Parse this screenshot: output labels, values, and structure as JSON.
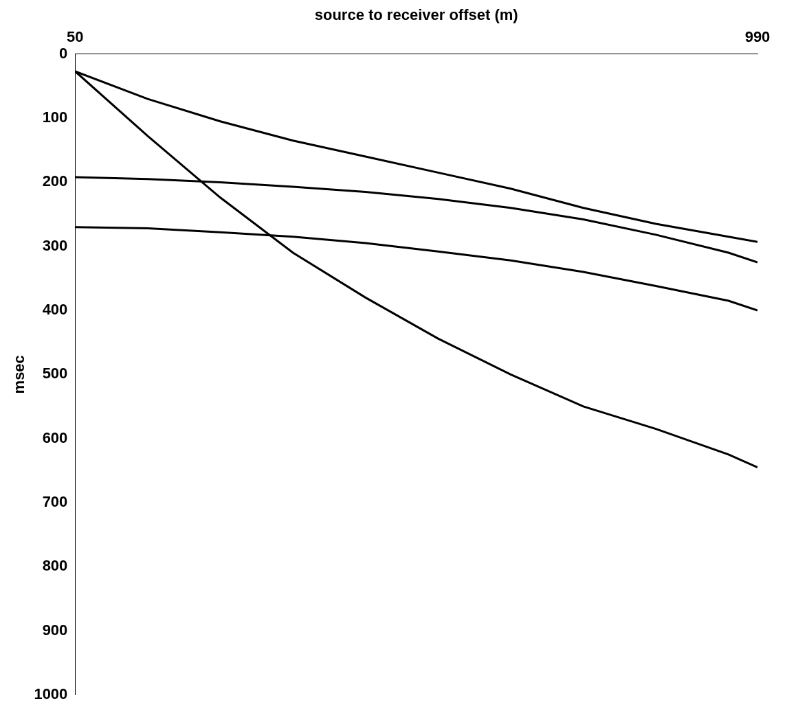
{
  "chart_data": {
    "type": "line",
    "x_label": "source to receiver offset (m)",
    "y_label": "msec",
    "x": [
      50,
      150,
      250,
      350,
      450,
      550,
      650,
      750,
      850,
      950,
      990
    ],
    "series": [
      {
        "color": "#000000",
        "values": [
          27,
          70,
          105,
          135,
          160,
          185,
          210,
          240,
          265,
          285,
          293
        ]
      },
      {
        "color": "#000000",
        "values": [
          27,
          128,
          224,
          310,
          380,
          444,
          500,
          550,
          585,
          625,
          645
        ]
      },
      {
        "color": "#000000",
        "values": [
          192,
          195,
          200,
          207,
          215,
          226,
          240,
          258,
          282,
          310,
          325
        ]
      },
      {
        "color": "#000000",
        "values": [
          270,
          272,
          278,
          285,
          295,
          308,
          322,
          340,
          362,
          385,
          400
        ]
      }
    ],
    "xlim": [
      50,
      990
    ],
    "xticks": [
      50,
      990
    ],
    "ylim": [
      1000,
      0
    ],
    "yticks": [
      0,
      100,
      200,
      300,
      400,
      500,
      600,
      700,
      800,
      900,
      1000
    ],
    "grid": false
  }
}
